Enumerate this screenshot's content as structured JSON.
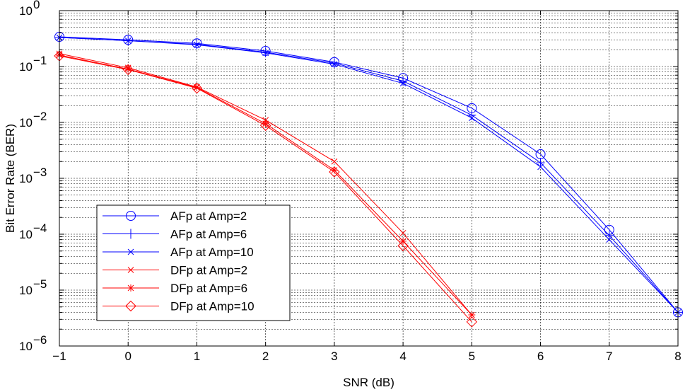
{
  "chart_data": {
    "type": "line",
    "xlabel": "SNR (dB)",
    "ylabel": "Bit Error Rate (BER)",
    "xlim": [
      -1,
      8
    ],
    "ylim": [
      1e-06,
      1
    ],
    "yscale": "log",
    "grid": true,
    "legend_position": "bottom-left",
    "x_ticks": [
      "−1",
      "0",
      "1",
      "2",
      "3",
      "4",
      "5",
      "6",
      "7",
      "8"
    ],
    "y_ticks": [
      {
        "base": "10",
        "exp": "−6"
      },
      {
        "base": "10",
        "exp": "−5"
      },
      {
        "base": "10",
        "exp": "−4"
      },
      {
        "base": "10",
        "exp": "−3"
      },
      {
        "base": "10",
        "exp": "−2"
      },
      {
        "base": "10",
        "exp": "−1"
      },
      {
        "base": "10",
        "exp": "0"
      }
    ],
    "series": [
      {
        "name": "AFp at Amp=2",
        "color": "#0000ff",
        "marker": "circle",
        "x": [
          -1,
          0,
          1,
          2,
          3,
          4,
          5,
          6,
          7,
          8
        ],
        "y": [
          0.34,
          0.3,
          0.26,
          0.19,
          0.12,
          0.062,
          0.018,
          0.0027,
          0.00012,
          4e-06
        ]
      },
      {
        "name": "AFp at Amp=6",
        "color": "#0000ff",
        "marker": "plus",
        "x": [
          -1,
          0,
          1,
          2,
          3,
          4,
          5,
          6,
          7,
          8
        ],
        "y": [
          0.33,
          0.29,
          0.25,
          0.18,
          0.115,
          0.055,
          0.0135,
          0.0019,
          9.5e-05,
          4e-06
        ]
      },
      {
        "name": "AFp at Amp=10",
        "color": "#0000ff",
        "marker": "x",
        "x": [
          -1,
          0,
          1,
          2,
          3,
          4,
          5,
          6,
          7,
          8
        ],
        "y": [
          0.33,
          0.29,
          0.245,
          0.175,
          0.11,
          0.05,
          0.012,
          0.0016,
          8e-05,
          4e-06
        ]
      },
      {
        "name": "DFp at Amp=2",
        "color": "#ff0000",
        "marker": "x",
        "x": [
          -1,
          0,
          1,
          2,
          3,
          4,
          5
        ],
        "y": [
          0.17,
          0.095,
          0.043,
          0.011,
          0.002,
          0.000105,
          3.6e-06
        ]
      },
      {
        "name": "DFp at Amp=6",
        "color": "#ff0000",
        "marker": "star",
        "x": [
          -1,
          0,
          1,
          2,
          3,
          4,
          5
        ],
        "y": [
          0.16,
          0.09,
          0.042,
          0.0095,
          0.0014,
          7.5e-05,
          3.6e-06
        ]
      },
      {
        "name": "DFp at Amp=10",
        "color": "#ff0000",
        "marker": "diamond",
        "x": [
          -1,
          0,
          1,
          2,
          3,
          4,
          5
        ],
        "y": [
          0.155,
          0.088,
          0.041,
          0.0088,
          0.0013,
          6.2e-05,
          2.7e-06
        ]
      }
    ]
  }
}
